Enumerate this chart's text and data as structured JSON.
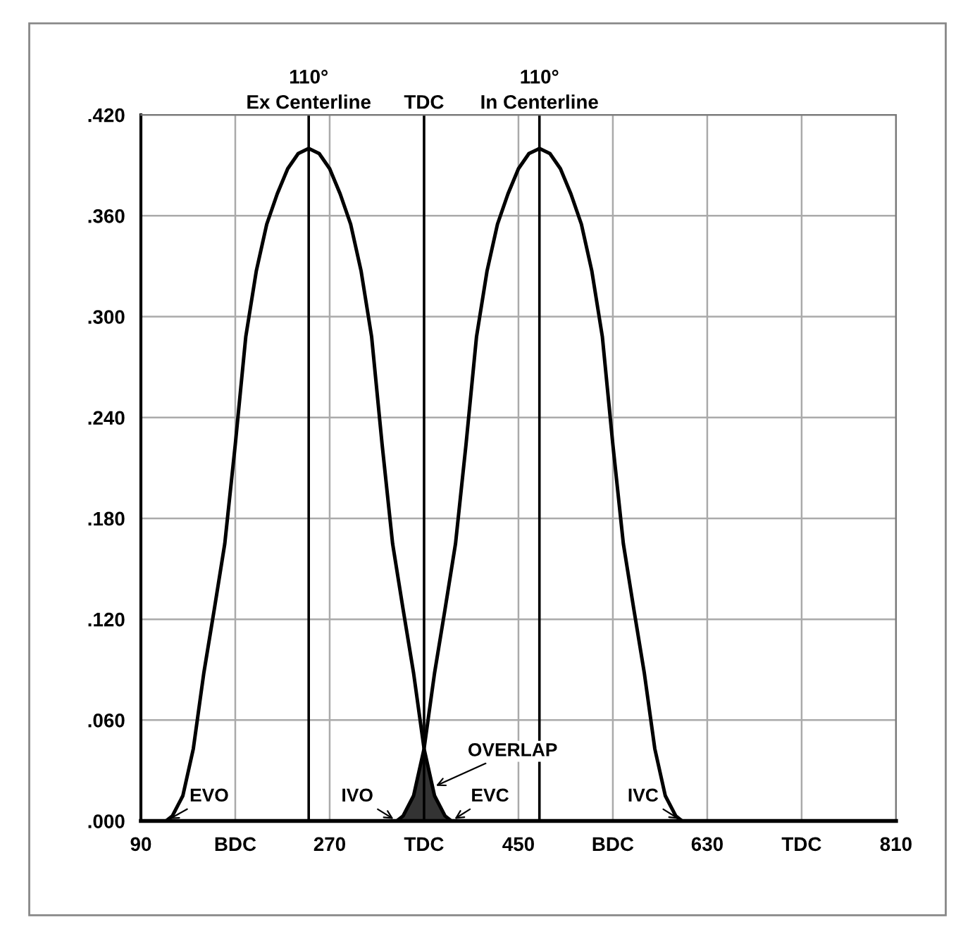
{
  "chart_data": {
    "type": "line",
    "xlim": [
      90,
      810
    ],
    "ylim": [
      0,
      0.42
    ],
    "xticks": [
      90,
      {
        "value": 180,
        "label": "BDC"
      },
      270,
      {
        "value": 360,
        "label": "TDC"
      },
      450,
      {
        "value": 540,
        "label": "BDC"
      },
      630,
      {
        "value": 720,
        "label": "TDC"
      },
      810
    ],
    "yticks": [
      {
        "value": 0,
        "label": ".000"
      },
      {
        "value": 0.06,
        "label": ".060"
      },
      {
        "value": 0.12,
        "label": ".120"
      },
      {
        "value": 0.18,
        "label": ".180"
      },
      {
        "value": 0.24,
        "label": ".240"
      },
      {
        "value": 0.3,
        "label": ".300"
      },
      {
        "value": 0.36,
        "label": ".360"
      },
      {
        "value": 0.42,
        "label": ".420"
      }
    ],
    "grid": true,
    "line_style": "solid",
    "marker": "none",
    "series": [
      {
        "color": "#000000",
        "x": [
          90,
          114,
          120,
          130,
          140,
          150,
          160,
          170,
          180,
          190,
          200,
          210,
          220,
          230,
          240,
          250,
          260,
          270,
          280,
          290,
          300,
          310,
          320,
          330,
          340,
          350,
          360,
          370,
          380,
          386,
          810
        ],
        "values": [
          0,
          0,
          0.003,
          0.015,
          0.043,
          0.088,
          0.126,
          0.165,
          0.224,
          0.288,
          0.327,
          0.355,
          0.373,
          0.388,
          0.397,
          0.4,
          0.397,
          0.388,
          0.373,
          0.355,
          0.327,
          0.288,
          0.224,
          0.165,
          0.126,
          0.088,
          0.043,
          0.015,
          0.003,
          0,
          0
        ]
      },
      {
        "color": "#000000",
        "x": [
          90,
          334,
          340,
          350,
          360,
          370,
          380,
          390,
          400,
          410,
          420,
          430,
          440,
          450,
          460,
          470,
          480,
          490,
          500,
          510,
          520,
          530,
          540,
          550,
          560,
          570,
          580,
          590,
          600,
          606,
          810
        ],
        "values": [
          0,
          0,
          0.003,
          0.015,
          0.043,
          0.088,
          0.126,
          0.165,
          0.224,
          0.288,
          0.327,
          0.355,
          0.373,
          0.388,
          0.397,
          0.4,
          0.397,
          0.388,
          0.373,
          0.355,
          0.327,
          0.288,
          0.224,
          0.165,
          0.126,
          0.088,
          0.043,
          0.015,
          0.003,
          0,
          0
        ]
      },
      {
        "type": "area",
        "color": "#333333",
        "x": [
          334,
          340,
          350,
          360,
          370,
          380,
          386
        ],
        "values": [
          0,
          0.003,
          0.015,
          0.043,
          0.015,
          0.003,
          0
        ]
      }
    ],
    "ref_lines": [
      {
        "axis": "x",
        "value": 250,
        "label": "Ex Centerline",
        "color": "#000000"
      },
      {
        "axis": "x",
        "value": 360,
        "label": "TDC",
        "color": "#000000"
      },
      {
        "axis": "x",
        "value": 470,
        "label": "In Centerline",
        "color": "#000000"
      }
    ],
    "annotations": [
      {
        "text": "110°",
        "x": 250,
        "y": 0.42
      },
      {
        "text": "110°",
        "x": 470,
        "y": 0.42
      },
      {
        "text": "EVO",
        "x": 114,
        "y": 0
      },
      {
        "text": "IVO",
        "x": 334,
        "y": 0
      },
      {
        "text": "EVC",
        "x": 386,
        "y": 0
      },
      {
        "text": "IVC",
        "x": 606,
        "y": 0
      },
      {
        "text": "OVERLAP",
        "x": 368,
        "y": 0.02
      }
    ]
  }
}
